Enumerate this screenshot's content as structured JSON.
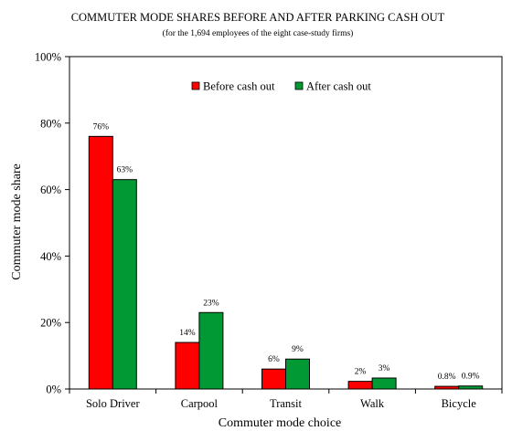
{
  "chart_data": {
    "type": "bar",
    "title": "COMMUTER MODE SHARES BEFORE AND AFTER PARKING CASH OUT",
    "subtitle": "(for the 1,694 employees of the eight case-study firms)",
    "xlabel": "Commuter mode choice",
    "ylabel": "Commuter mode share",
    "ylim": [
      0,
      100
    ],
    "yticks": [
      0,
      20,
      40,
      60,
      80,
      100
    ],
    "ytick_labels": [
      "0%",
      "20%",
      "40%",
      "60%",
      "80%",
      "100%"
    ],
    "grid": false,
    "legend_position": "top-center",
    "categories": [
      "Solo Driver",
      "Carpool",
      "Transit",
      "Walk",
      "Bicycle"
    ],
    "series": [
      {
        "name": "Before cash out",
        "color": "#ff0000",
        "values": [
          76,
          14,
          6,
          2.3,
          0.8
        ],
        "labels": [
          "76%",
          "14%",
          "6%",
          "2%",
          "0.8%"
        ]
      },
      {
        "name": "After cash out",
        "color": "#009933",
        "values": [
          63,
          23,
          9,
          3.3,
          0.9
        ],
        "labels": [
          "63%",
          "23%",
          "9%",
          "3%",
          "0.9%"
        ]
      }
    ]
  }
}
